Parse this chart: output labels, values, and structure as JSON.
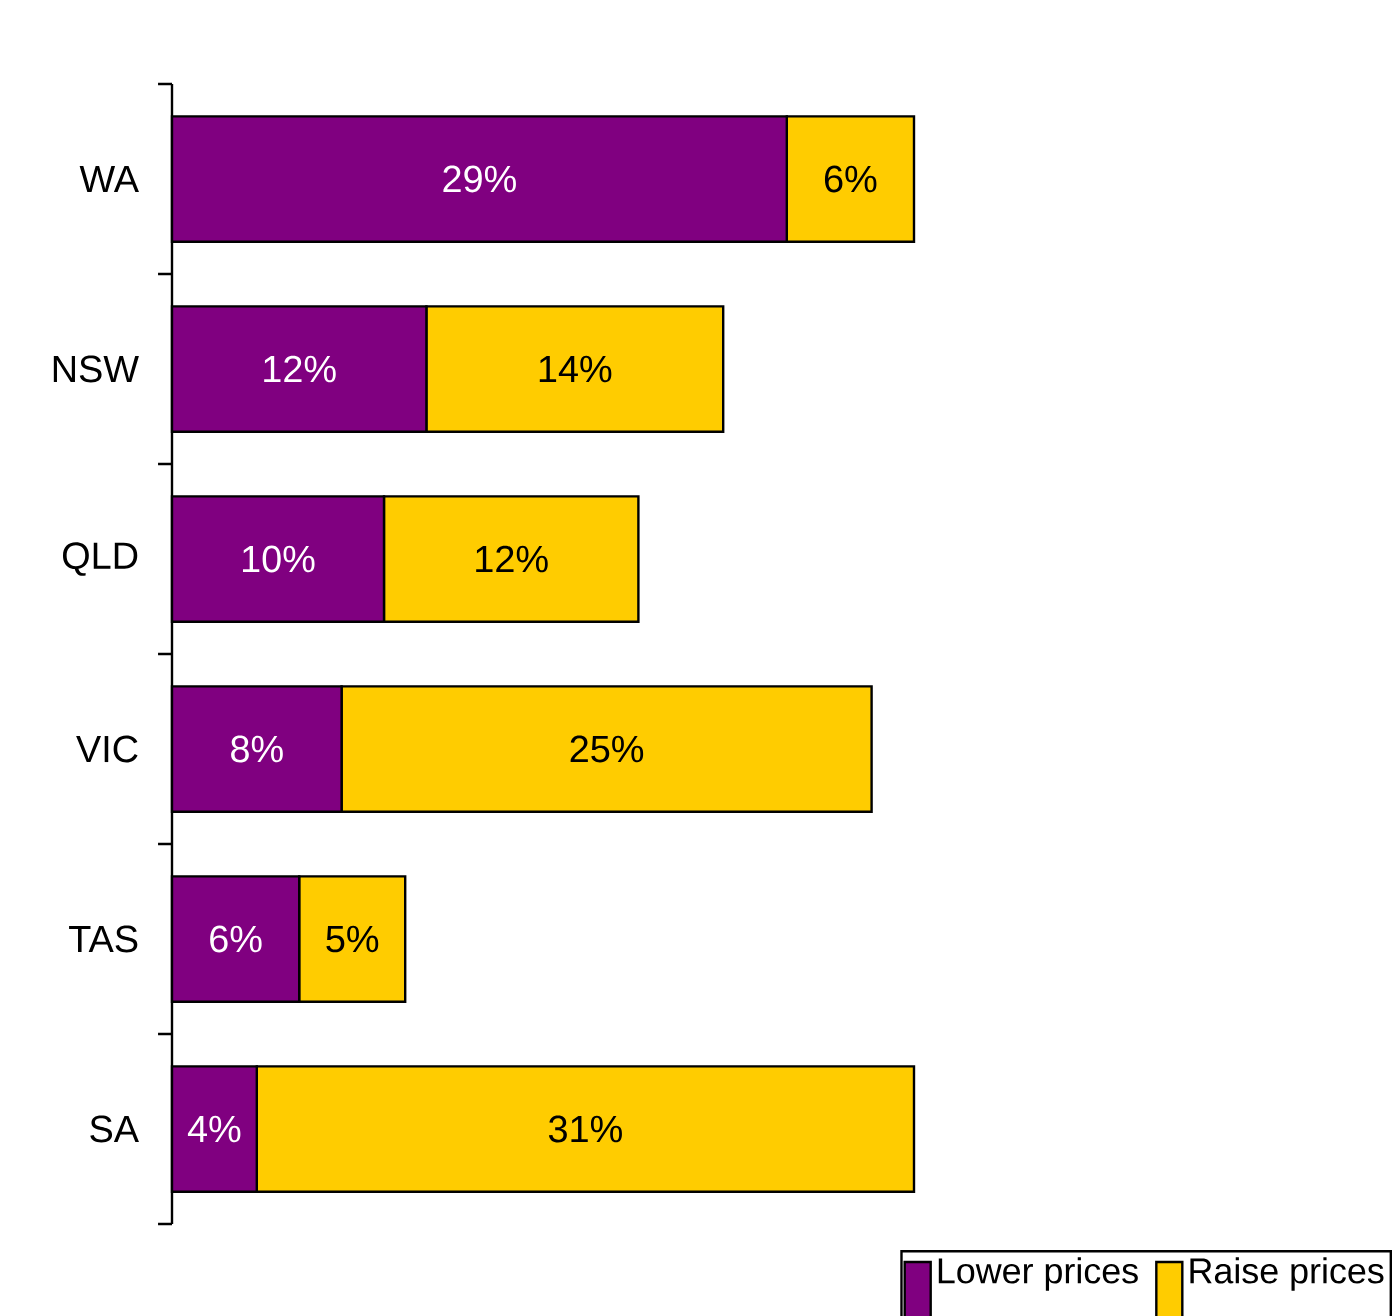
{
  "chart_data": {
    "type": "bar",
    "orientation": "horizontal",
    "stacked": true,
    "categories": [
      "WA",
      "NSW",
      "QLD",
      "VIC",
      "TAS",
      "SA"
    ],
    "series": [
      {
        "name": "Lower prices",
        "color": "#800080",
        "values": [
          29,
          12,
          10,
          8,
          6,
          4
        ],
        "value_labels": [
          "29%",
          "12%",
          "10%",
          "8%",
          "6%",
          "4%"
        ]
      },
      {
        "name": "Raise prices",
        "color": "#ffcc00",
        "values": [
          6,
          14,
          12,
          25,
          5,
          31
        ],
        "value_labels": [
          "6%",
          "14%",
          "12%",
          "25%",
          "5%",
          "31%"
        ]
      }
    ],
    "legend": "bottom right"
  }
}
